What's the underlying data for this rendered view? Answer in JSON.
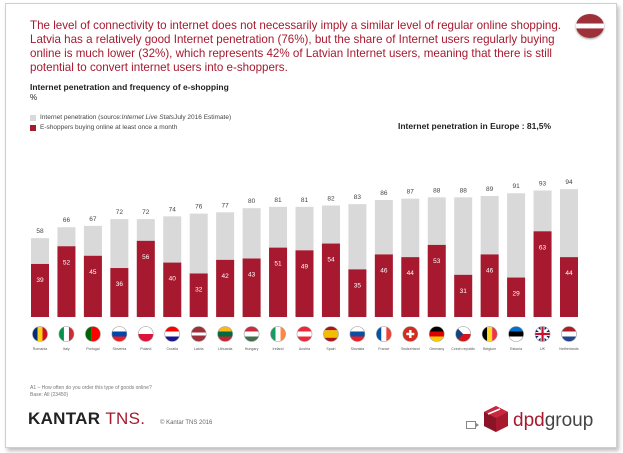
{
  "headline": "The level of connectivity to internet does not necessarily imply a similar level of regular online shopping. Latvia has a relatively good Internet penetration (76%), but the share of Internet users regularly buying online is much lower (32%), which represents 42% of Latvian Internet users, meaning that there is still potential to convert internet users into e-shoppers.",
  "chart_title": "Internet penetration and frequency of e-shopping",
  "chart_unit": "%",
  "legend": {
    "penetration_prefix": "Internet penetration (source: ",
    "penetration_italic": "Internet Live Stats",
    "penetration_suffix": " July 2016 Estimate)",
    "eshoppers": "E-shoppers buying online at least once a month"
  },
  "europe_note": "Internet penetration in Europe : 81,5%",
  "colors": {
    "penetration": "#d9d9d9",
    "eshoppers": "#a6192e",
    "headline": "#a6192e"
  },
  "chart_data": {
    "type": "bar",
    "categories": [
      "Romania",
      "Italy",
      "Portugal",
      "Slovenia",
      "Poland",
      "Croatia",
      "Latvia",
      "Lithuania",
      "Hungary",
      "Ireland",
      "Austria",
      "Spain",
      "Slovakia",
      "France",
      "Switzerland",
      "Germany",
      "Czech republic",
      "Belgium",
      "Estonia",
      "UK",
      "Netherlands"
    ],
    "series": [
      {
        "name": "Internet penetration (source: Internet Live Stats July 2016 Estimate)",
        "values": [
          58,
          66,
          67,
          72,
          72,
          74,
          76,
          77,
          80,
          81,
          81,
          82,
          83,
          86,
          87,
          88,
          88,
          89,
          91,
          93,
          94
        ]
      },
      {
        "name": "E-shoppers buying online at least once a month",
        "values": [
          39,
          52,
          45,
          36,
          56,
          40,
          32,
          42,
          43,
          51,
          49,
          54,
          35,
          46,
          44,
          53,
          31,
          46,
          29,
          63,
          44
        ]
      }
    ],
    "ylim": [
      0,
      100
    ]
  },
  "footnote": {
    "line1": "A1 – How often do you order this type of goods online?",
    "line2": "Base: All (23450)"
  },
  "brand": {
    "kantar": "KANTAR",
    "tns": "TNS",
    "tns_mark": ".",
    "copyright": "© Kantar TNS 2016",
    "dpd_a": "dpd",
    "dpd_b": "group"
  }
}
